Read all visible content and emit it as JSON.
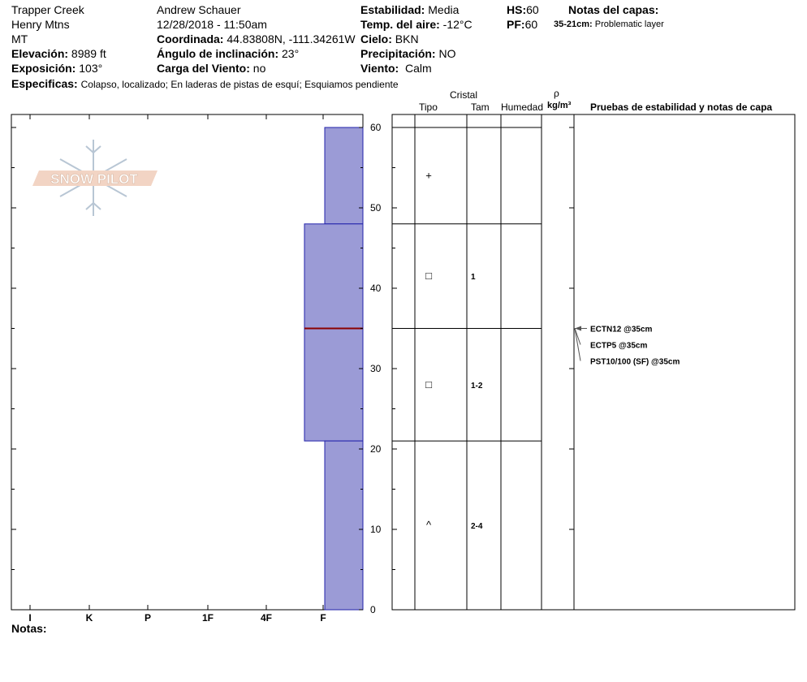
{
  "header": {
    "location": "Trapper Creek",
    "range": "Henry Mtns",
    "state": "MT",
    "elevation_label": "Elevación:",
    "elevation_value": "8989 ft",
    "aspect_label": "Exposición:",
    "aspect_value": "103°",
    "observer": "Andrew Schauer",
    "datetime": "12/28/2018 - 11:50am",
    "coord_label": "Coordinada:",
    "coord_value": "44.83808N, -111.34261W",
    "slope_label": "Ángulo de inclinación:",
    "slope_value": "23°",
    "wind_load_label": "Carga del Viento:",
    "wind_load_value": "no",
    "stability_label": "Estabilidad:",
    "stability_value": "Media",
    "air_temp_label": "Temp. del aire:",
    "air_temp_value": "-12°C",
    "sky_label": "Cielo:",
    "sky_value": "BKN",
    "precip_label": "Precipitación:",
    "precip_value": "NO",
    "wind_label": "Viento:",
    "wind_value": "Calm",
    "hs_label": "HS:",
    "hs_value": "60",
    "pf_label": "PF:",
    "pf_value": "60",
    "layer_notes_label": "Notas del capas:",
    "layer_note_range": "35-21cm:",
    "layer_note_text": "Problematic layer",
    "specifics_label": "Especificas:",
    "specifics_value": "Colapso, localizado;  En laderas de pistas de esquí;  Esquiamos pendiente"
  },
  "table_headers": {
    "crystal": "Cristal",
    "type": "Tipo",
    "size": "Tam",
    "moisture": "Humedad",
    "rho": "ρ",
    "density_unit": "kg/m³",
    "tests": "Pruebas de estabilidad y notas de capa"
  },
  "notes_label": "Notas:",
  "logo_text": "SNOW PILOT",
  "colors": {
    "hardness_fill": "#9b9bd6",
    "hardness_edge": "#2222aa",
    "weak_layer_line": "#8b0000"
  },
  "chart_data": {
    "type": "bar",
    "title": "",
    "x_categories": [
      "I",
      "K",
      "P",
      "1F",
      "4F",
      "F"
    ],
    "ylim": [
      0,
      60
    ],
    "y_ticks": [
      "0",
      "10",
      "20",
      "30",
      "40",
      "50",
      "60"
    ],
    "hardness_layers": [
      {
        "top": 60,
        "bottom": 48,
        "hardness": "F"
      },
      {
        "top": 48,
        "bottom": 21,
        "hardness": "F+"
      },
      {
        "top": 21,
        "bottom": 0,
        "hardness": "F"
      }
    ],
    "weak_layer_depth": 35,
    "crystal_layers": [
      {
        "top": 60,
        "bottom": 48,
        "type_symbol": "+",
        "size": ""
      },
      {
        "top": 48,
        "bottom": 35,
        "type_symbol": "□",
        "size": "1"
      },
      {
        "top": 35,
        "bottom": 21,
        "type_symbol": "□",
        "size": "1-2"
      },
      {
        "top": 21,
        "bottom": 0,
        "type_symbol": "^",
        "size": "2-4"
      }
    ],
    "stability_tests": [
      {
        "label": "ECTN12 @35cm",
        "depth": 35
      },
      {
        "label": "ECTP5 @35cm",
        "depth": 35
      },
      {
        "label": "PST10/100 (SF) @35cm",
        "depth": 35
      }
    ]
  }
}
